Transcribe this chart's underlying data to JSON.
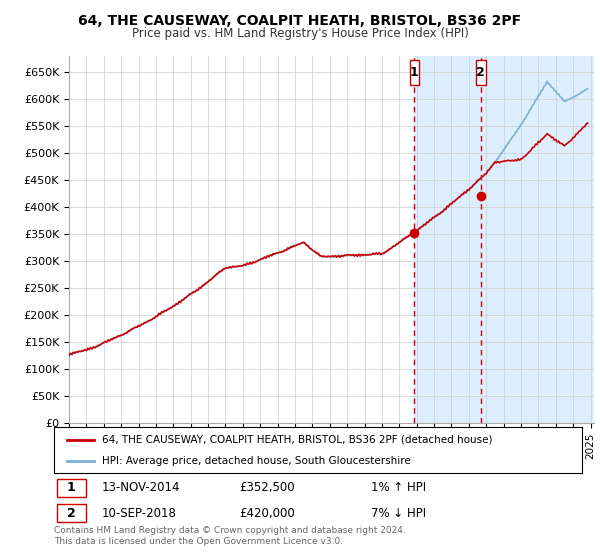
{
  "title": "64, THE CAUSEWAY, COALPIT HEATH, BRISTOL, BS36 2PF",
  "subtitle": "Price paid vs. HM Land Registry's House Price Index (HPI)",
  "ylabel_ticks": [
    "£0",
    "£50K",
    "£100K",
    "£150K",
    "£200K",
    "£250K",
    "£300K",
    "£350K",
    "£400K",
    "£450K",
    "£500K",
    "£550K",
    "£600K",
    "£650K"
  ],
  "ytick_values": [
    0,
    50000,
    100000,
    150000,
    200000,
    250000,
    300000,
    350000,
    400000,
    450000,
    500000,
    550000,
    600000,
    650000
  ],
  "ylim": [
    0,
    680000
  ],
  "xlim_start": 1995.0,
  "xlim_end": 2025.2,
  "sale1_x": 2014.87,
  "sale1_y": 352500,
  "sale2_x": 2018.69,
  "sale2_y": 420000,
  "red_color": "#cc0000",
  "blue_color": "#7ab0d4",
  "shaded_color": "#ddeeff",
  "legend_line1": "64, THE CAUSEWAY, COALPIT HEATH, BRISTOL, BS36 2PF (detached house)",
  "legend_line2": "HPI: Average price, detached house, South Gloucestershire",
  "annotation1_date": "13-NOV-2014",
  "annotation1_price": "£352,500",
  "annotation1_hpi": "1% ↑ HPI",
  "annotation2_date": "10-SEP-2018",
  "annotation2_price": "£420,000",
  "annotation2_hpi": "7% ↓ HPI",
  "footer": "Contains HM Land Registry data © Crown copyright and database right 2024.\nThis data is licensed under the Open Government Licence v3.0."
}
